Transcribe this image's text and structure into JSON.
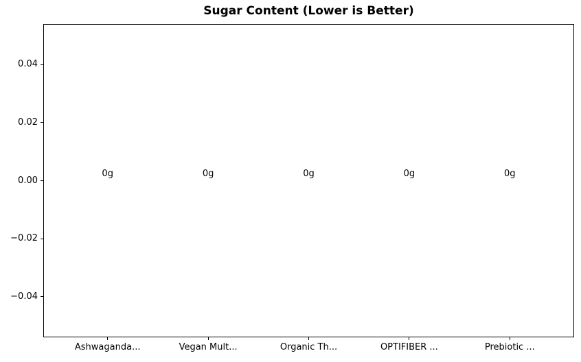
{
  "chart_data": {
    "type": "bar",
    "title": "Sugar Content (Lower is Better)",
    "categories": [
      "Ashwaganda...",
      "Vegan Mult...",
      "Organic Th...",
      "OPTIFIBER ...",
      "Prebiotic ..."
    ],
    "values": [
      0,
      0,
      0,
      0,
      0
    ],
    "bar_value_labels": [
      "0g",
      "0g",
      "0g",
      "0g",
      "0g"
    ],
    "xlabel": "",
    "ylabel": "",
    "ylim": [
      -0.054,
      0.054
    ],
    "yticks": {
      "values": [
        0.04,
        0.02,
        0.0,
        -0.02,
        -0.04
      ],
      "labels": [
        "0.04",
        "0.02",
        "0.00",
        "−0.02",
        "−0.04"
      ]
    },
    "grid": false,
    "legend": null
  },
  "colors": {
    "background": "#ffffff",
    "text": "#000000",
    "axis": "#000000"
  }
}
